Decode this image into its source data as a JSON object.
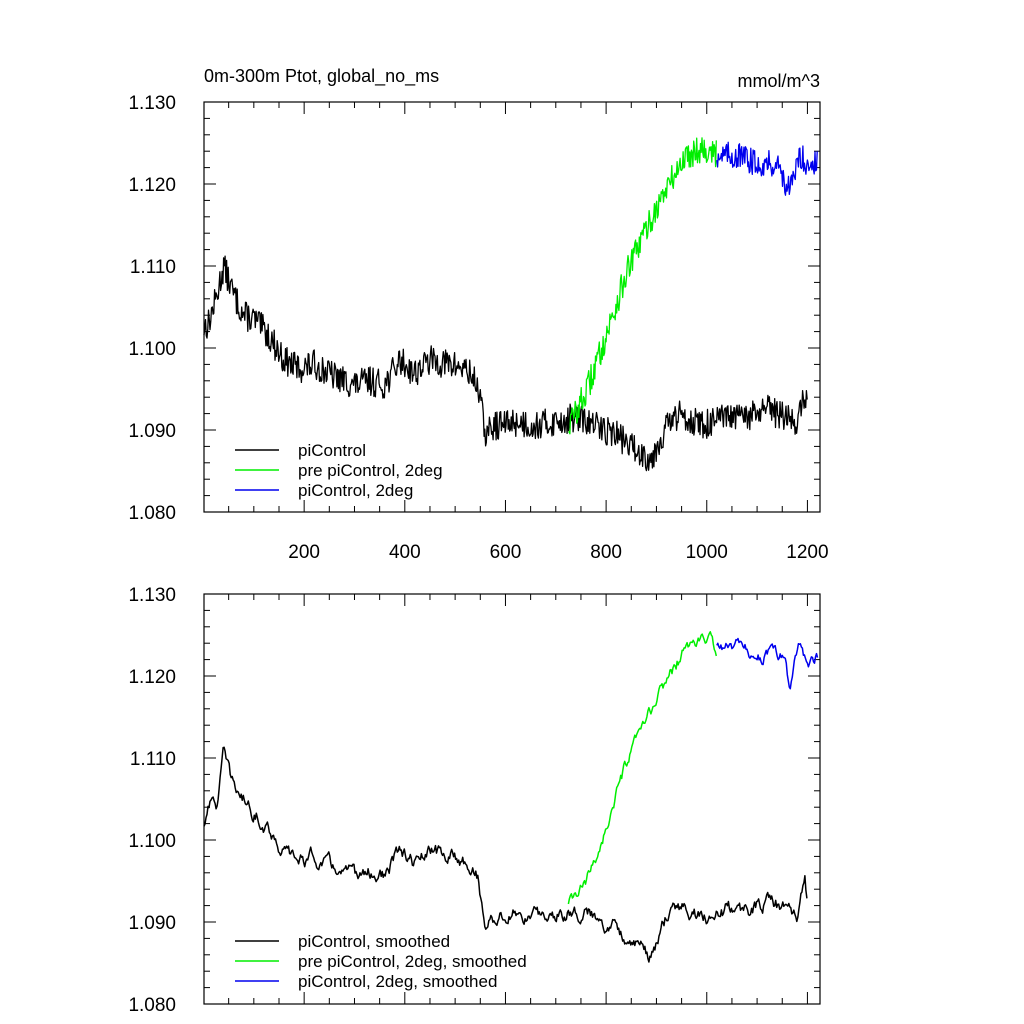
{
  "colors": {
    "piControl": "#000000",
    "pre_piControl_2deg": "#00ee00",
    "piControl_2deg": "#0000ee"
  },
  "chart_data": [
    {
      "type": "line",
      "title": "0m-300m Ptot, global_no_ms",
      "units": "mmol/m^3",
      "xlim": [
        1,
        1225
      ],
      "ylim": [
        1.08,
        1.13
      ],
      "x_ticks": [
        "200",
        "400",
        "600",
        "800",
        "1000",
        "1200"
      ],
      "y_ticks": [
        "1.080",
        "1.090",
        "1.100",
        "1.110",
        "1.120",
        "1.130"
      ],
      "grid": false,
      "legend_position": "bottom-left",
      "smoothed": false,
      "series": [
        {
          "name": "piControl",
          "color": "#000000",
          "x_range": [
            1,
            1200
          ],
          "anchors": [
            [
              1,
              1.1025
            ],
            [
              10,
              1.103
            ],
            [
              25,
              1.106
            ],
            [
              40,
              1.11
            ],
            [
              60,
              1.1065
            ],
            [
              80,
              1.104
            ],
            [
              100,
              1.1035
            ],
            [
              130,
              1.1015
            ],
            [
              160,
              1.0985
            ],
            [
              190,
              1.0975
            ],
            [
              220,
              1.098
            ],
            [
              260,
              1.0965
            ],
            [
              300,
              1.0955
            ],
            [
              330,
              1.096
            ],
            [
              360,
              1.0955
            ],
            [
              390,
              1.0985
            ],
            [
              420,
              1.097
            ],
            [
              450,
              1.0985
            ],
            [
              490,
              1.098
            ],
            [
              520,
              1.0975
            ],
            [
              545,
              1.0955
            ],
            [
              560,
              1.0895
            ],
            [
              580,
              1.0905
            ],
            [
              620,
              1.091
            ],
            [
              660,
              1.0905
            ],
            [
              700,
              1.091
            ],
            [
              740,
              1.0915
            ],
            [
              780,
              1.0905
            ],
            [
              820,
              1.0895
            ],
            [
              860,
              1.0875
            ],
            [
              890,
              1.0865
            ],
            [
              920,
              1.0905
            ],
            [
              950,
              1.092
            ],
            [
              990,
              1.0905
            ],
            [
              1040,
              1.0915
            ],
            [
              1080,
              1.0915
            ],
            [
              1120,
              1.0925
            ],
            [
              1160,
              1.0915
            ],
            [
              1180,
              1.091
            ],
            [
              1195,
              1.0945
            ],
            [
              1200,
              1.092
            ]
          ],
          "noise": 0.0018
        },
        {
          "name": "pre piControl, 2deg",
          "color": "#00ee00",
          "x_range": [
            725,
            1020
          ],
          "anchors": [
            [
              725,
              1.0905
            ],
            [
              760,
              1.0945
            ],
            [
              800,
              1.1015
            ],
            [
              840,
              1.109
            ],
            [
              880,
              1.1145
            ],
            [
              920,
              1.1195
            ],
            [
              960,
              1.1235
            ],
            [
              990,
              1.1245
            ],
            [
              1020,
              1.1235
            ]
          ],
          "noise": 0.0018
        },
        {
          "name": "piControl, 2deg",
          "color": "#0000ee",
          "x_range": [
            1020,
            1220
          ],
          "anchors": [
            [
              1020,
              1.1235
            ],
            [
              1060,
              1.1235
            ],
            [
              1100,
              1.1225
            ],
            [
              1140,
              1.1225
            ],
            [
              1165,
              1.119
            ],
            [
              1185,
              1.1235
            ],
            [
              1200,
              1.1225
            ],
            [
              1220,
              1.1225
            ]
          ],
          "noise": 0.0016
        }
      ]
    },
    {
      "type": "line",
      "title": "",
      "units": "",
      "xlim": [
        1,
        1225
      ],
      "ylim": [
        1.08,
        1.13
      ],
      "x_ticks": [],
      "y_ticks": [
        "1.080",
        "1.090",
        "1.100",
        "1.110",
        "1.120",
        "1.130"
      ],
      "grid": false,
      "legend_position": "bottom-left",
      "smoothed": true,
      "series": [
        {
          "name": "piControl, smoothed",
          "color": "#000000",
          "x_range": [
            1,
            1200
          ],
          "anchors": [
            [
              1,
              1.1015
            ],
            [
              10,
              1.105
            ],
            [
              25,
              1.104
            ],
            [
              40,
              1.1105
            ],
            [
              55,
              1.107
            ],
            [
              80,
              1.105
            ],
            [
              100,
              1.1035
            ],
            [
              130,
              1.1015
            ],
            [
              160,
              1.0985
            ],
            [
              190,
              1.0975
            ],
            [
              220,
              1.098
            ],
            [
              260,
              1.0965
            ],
            [
              300,
              1.0955
            ],
            [
              330,
              1.096
            ],
            [
              360,
              1.0955
            ],
            [
              390,
              1.0985
            ],
            [
              420,
              1.097
            ],
            [
              450,
              1.0985
            ],
            [
              490,
              1.098
            ],
            [
              520,
              1.0975
            ],
            [
              545,
              1.0955
            ],
            [
              560,
              1.0895
            ],
            [
              580,
              1.0905
            ],
            [
              620,
              1.091
            ],
            [
              660,
              1.0905
            ],
            [
              700,
              1.091
            ],
            [
              740,
              1.0915
            ],
            [
              780,
              1.0905
            ],
            [
              820,
              1.0895
            ],
            [
              860,
              1.0875
            ],
            [
              890,
              1.0855
            ],
            [
              920,
              1.0905
            ],
            [
              950,
              1.092
            ],
            [
              990,
              1.0905
            ],
            [
              1040,
              1.0915
            ],
            [
              1080,
              1.0915
            ],
            [
              1120,
              1.0925
            ],
            [
              1160,
              1.0915
            ],
            [
              1180,
              1.0905
            ],
            [
              1195,
              1.095
            ],
            [
              1200,
              1.0925
            ]
          ],
          "noise": 0.0009
        },
        {
          "name": "pre piControl, 2deg, smoothed",
          "color": "#00ee00",
          "x_range": [
            725,
            1020
          ],
          "anchors": [
            [
              725,
              1.092
            ],
            [
              760,
              1.0945
            ],
            [
              800,
              1.1015
            ],
            [
              840,
              1.109
            ],
            [
              880,
              1.1145
            ],
            [
              920,
              1.1195
            ],
            [
              960,
              1.1235
            ],
            [
              990,
              1.1245
            ],
            [
              1020,
              1.1235
            ]
          ],
          "noise": 0.0008
        },
        {
          "name": "piControl, 2deg, smoothed",
          "color": "#0000ee",
          "x_range": [
            1020,
            1220
          ],
          "anchors": [
            [
              1020,
              1.1235
            ],
            [
              1060,
              1.1235
            ],
            [
              1100,
              1.1225
            ],
            [
              1140,
              1.1225
            ],
            [
              1155,
              1.122
            ],
            [
              1165,
              1.118
            ],
            [
              1175,
              1.1225
            ],
            [
              1185,
              1.124
            ],
            [
              1200,
              1.1215
            ],
            [
              1220,
              1.1225
            ]
          ],
          "noise": 0.0008
        }
      ]
    }
  ]
}
